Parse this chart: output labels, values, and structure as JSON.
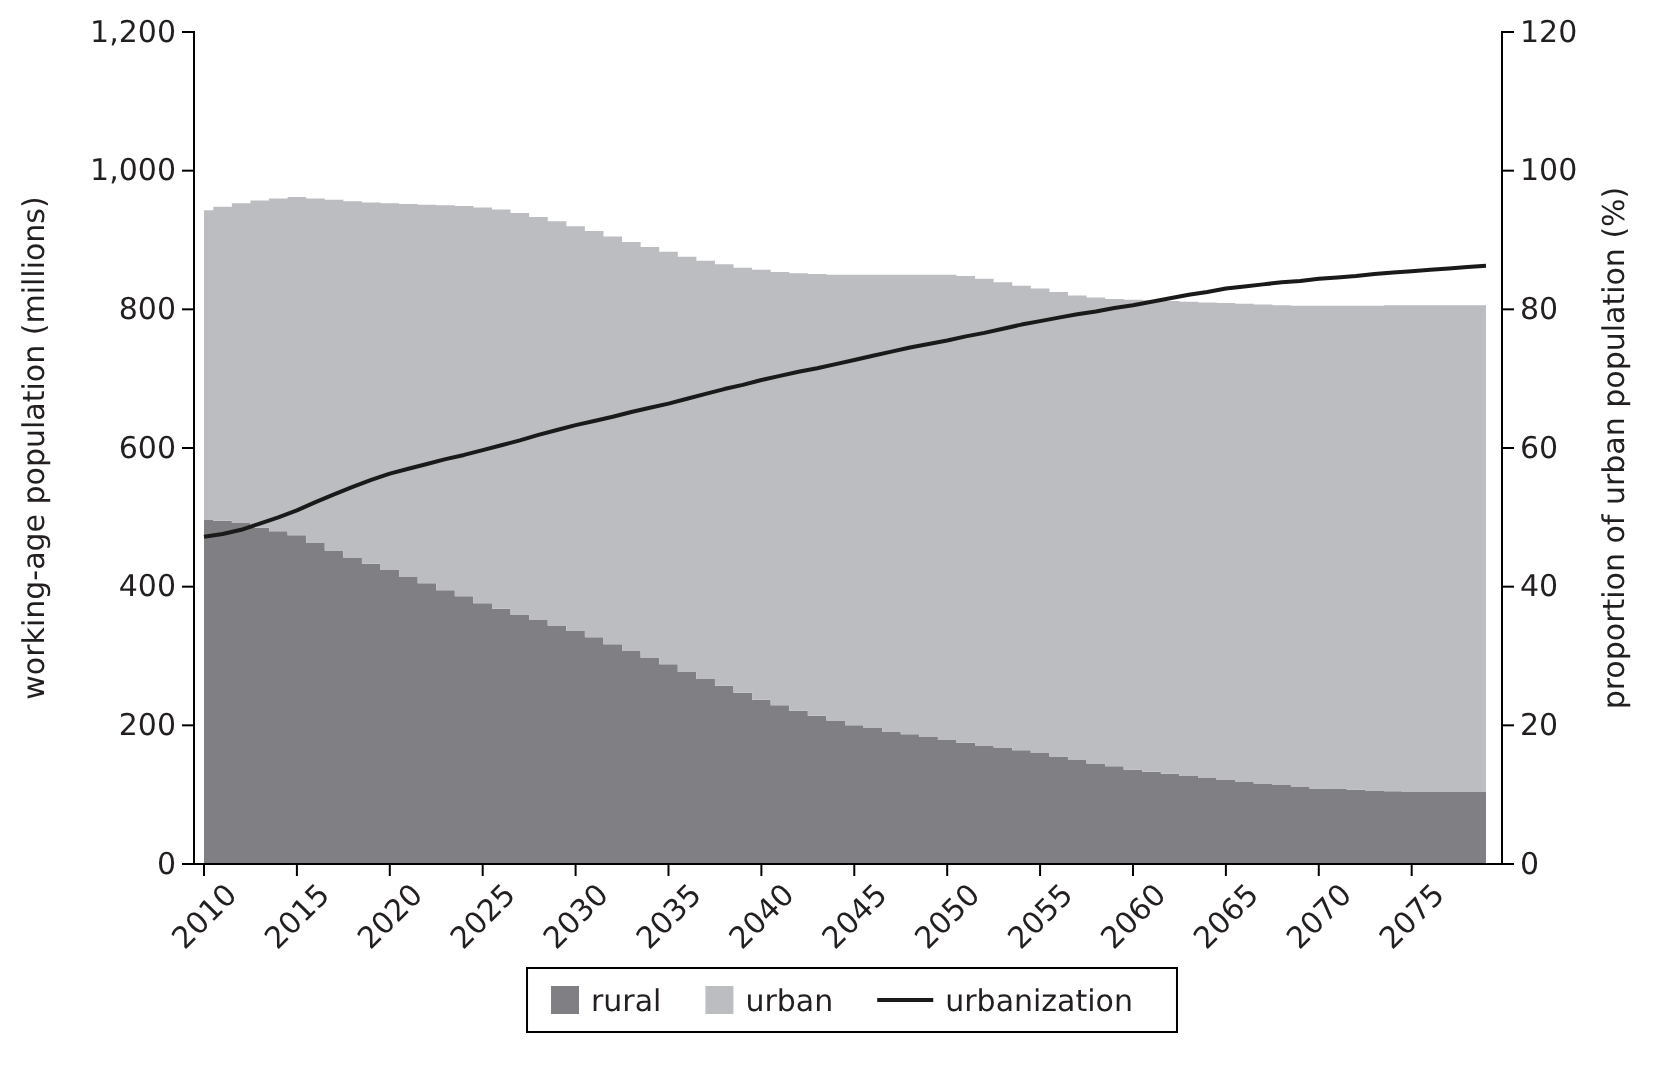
{
  "chart_data": {
    "type": "area",
    "stacked": true,
    "xlabel": null,
    "ylabel": "working-age population (millions)",
    "y2label": "proportion of urban population (%)",
    "categories": [
      "2010",
      null,
      null,
      null,
      null,
      "2015",
      null,
      null,
      null,
      null,
      "2020",
      null,
      null,
      null,
      null,
      "2025",
      null,
      null,
      null,
      null,
      "2030",
      null,
      null,
      null,
      null,
      "2035",
      null,
      null,
      null,
      null,
      "2040",
      null,
      null,
      null,
      null,
      "2045",
      null,
      null,
      null,
      null,
      "2050",
      null,
      null,
      null,
      null,
      "2055",
      null,
      null,
      null,
      null,
      "2060",
      null,
      null,
      null,
      null,
      "2065",
      null,
      null,
      null,
      null,
      "2070",
      null,
      null,
      null,
      null,
      "2075",
      null,
      null,
      null,
      null
    ],
    "ylim": [
      0,
      1200
    ],
    "yticks": [
      0,
      {
        "value": 200,
        "label": "200"
      },
      {
        "value": 400,
        "label": "400"
      },
      {
        "value": 600,
        "label": "600"
      },
      {
        "value": 800,
        "label": "800"
      },
      {
        "value": 1000,
        "label": "1,000"
      },
      {
        "value": 1200,
        "label": "1,200"
      }
    ],
    "y2lim": [
      0,
      120
    ],
    "y2ticks": [
      0,
      20,
      40,
      60,
      80,
      100,
      120
    ],
    "legend": "bottom",
    "grid": false,
    "series": [
      {
        "name": "rural",
        "color": "#808084",
        "values": [
          496,
          495,
          492,
          485,
          480,
          474,
          463,
          452,
          442,
          433,
          424,
          414,
          405,
          395,
          386,
          376,
          368,
          360,
          352,
          344,
          336,
          327,
          317,
          308,
          298,
          288,
          277,
          267,
          257,
          247,
          237,
          229,
          221,
          214,
          207,
          200,
          196,
          191,
          187,
          183,
          179,
          175,
          171,
          168,
          164,
          160,
          155,
          150,
          145,
          141,
          136,
          133,
          130,
          127,
          124,
          121,
          119,
          116,
          114,
          111,
          109,
          108,
          107,
          106,
          105,
          104,
          104,
          104,
          104,
          104
        ]
      },
      {
        "name": "urban",
        "color": "#bcbdc1",
        "values": [
          447,
          453,
          461,
          472,
          480,
          488,
          497,
          506,
          514,
          521,
          529,
          538,
          546,
          555,
          563,
          571,
          576,
          579,
          581,
          583,
          584,
          586,
          588,
          589,
          592,
          595,
          599,
          603,
          608,
          613,
          620,
          625,
          631,
          637,
          643,
          650,
          654,
          659,
          663,
          667,
          671,
          673,
          673,
          671,
          670,
          670,
          670,
          670,
          672,
          674,
          678,
          680,
          682,
          684,
          686,
          688,
          689,
          691,
          692,
          694,
          696,
          697,
          698,
          699,
          701,
          702,
          702,
          702,
          702,
          702
        ]
      },
      {
        "name": "urbanization",
        "type": "line",
        "axis": "y2",
        "color": "#1a1a1a",
        "values": [
          47.2,
          47.6,
          48.2,
          49.1,
          50.0,
          51.0,
          52.2,
          53.3,
          54.4,
          55.4,
          56.3,
          57.0,
          57.7,
          58.4,
          59.0,
          59.7,
          60.4,
          61.1,
          61.9,
          62.6,
          63.3,
          63.9,
          64.5,
          65.2,
          65.8,
          66.4,
          67.1,
          67.8,
          68.5,
          69.1,
          69.8,
          70.4,
          71.0,
          71.5,
          72.1,
          72.7,
          73.3,
          73.9,
          74.5,
          75.0,
          75.5,
          76.1,
          76.6,
          77.2,
          77.8,
          78.3,
          78.8,
          79.3,
          79.7,
          80.2,
          80.6,
          81.1,
          81.6,
          82.1,
          82.5,
          83.0,
          83.3,
          83.6,
          83.9,
          84.1,
          84.4,
          84.6,
          84.8,
          85.1,
          85.3,
          85.5,
          85.7,
          85.9,
          86.1,
          86.3
        ]
      }
    ]
  }
}
